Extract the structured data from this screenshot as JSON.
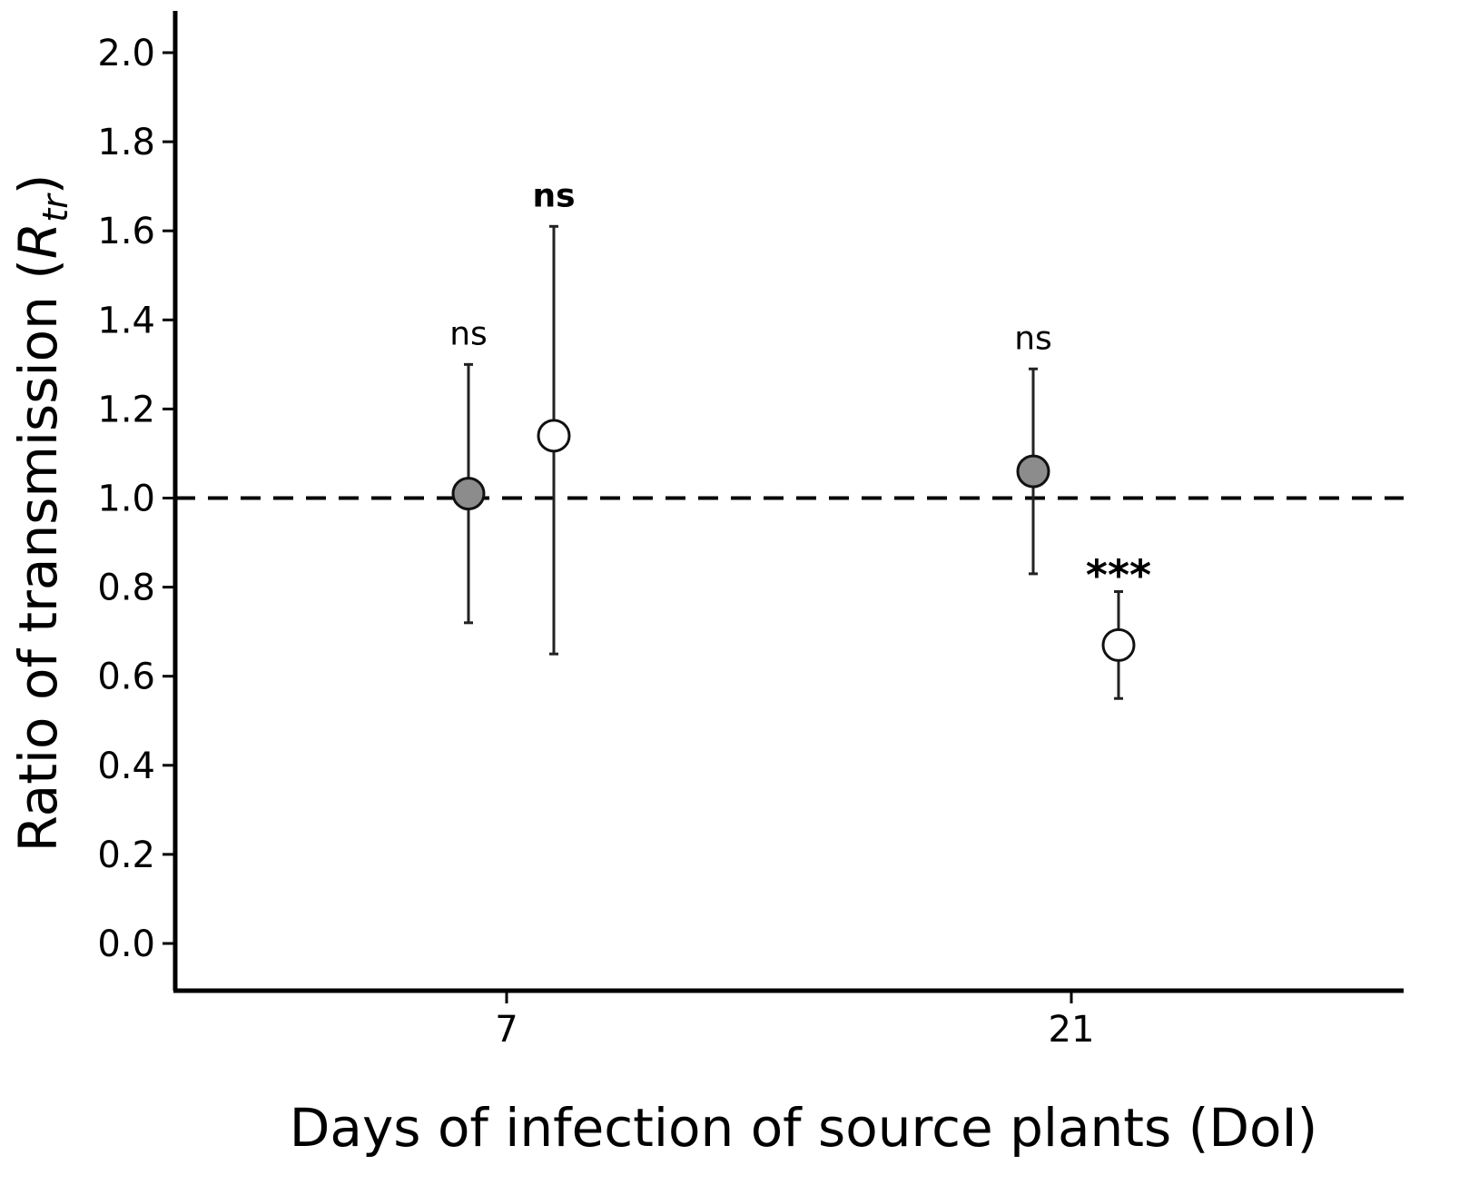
{
  "chart_data": {
    "type": "scatter",
    "title": "",
    "xlabel": "Days of infection of source plants (DoI)",
    "ylabel": {
      "main": "Ratio of transmission (",
      "symbol": "R",
      "subscript": "tr",
      "close": ")"
    },
    "ylim": [
      -0.1,
      2.1
    ],
    "yticks": [
      "0.0",
      "0.2",
      "0.4",
      "0.6",
      "0.8",
      "1.0",
      "1.2",
      "1.4",
      "1.6",
      "1.8",
      "2.0"
    ],
    "x_categories": [
      "7",
      "21"
    ],
    "reference_line": {
      "y": 1.0,
      "style": "dashed"
    },
    "grid": false,
    "legend": "none",
    "points": [
      {
        "category": "7",
        "group": "filled",
        "fill": "#8c8c8c",
        "y": 1.01,
        "lower": 0.72,
        "upper": 1.3,
        "label": "ns",
        "label_weight": "normal"
      },
      {
        "category": "7",
        "group": "open",
        "fill": "#ffffff",
        "y": 1.14,
        "lower": 0.65,
        "upper": 1.61,
        "label": "ns",
        "label_weight": "bold"
      },
      {
        "category": "21",
        "group": "filled",
        "fill": "#8c8c8c",
        "y": 1.06,
        "lower": 0.83,
        "upper": 1.29,
        "label": "ns",
        "label_weight": "normal"
      },
      {
        "category": "21",
        "group": "open",
        "fill": "#ffffff",
        "y": 0.67,
        "lower": 0.55,
        "upper": 0.79,
        "label": "***",
        "label_weight": "bold"
      }
    ]
  }
}
